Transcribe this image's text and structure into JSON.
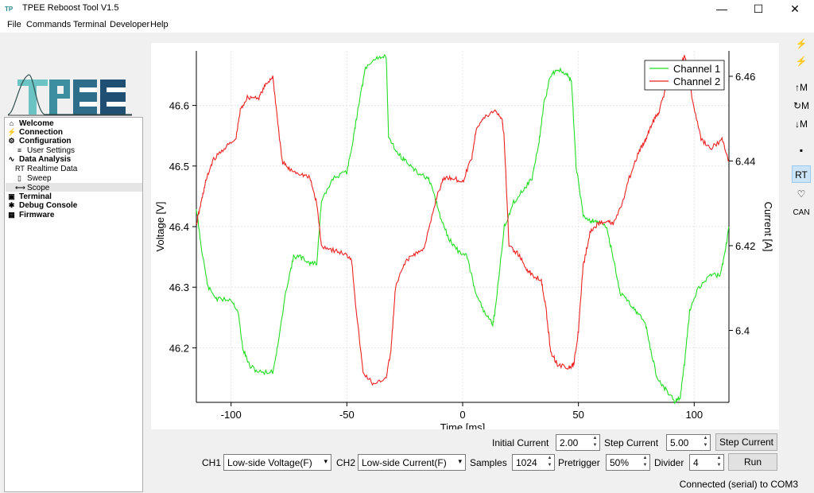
{
  "window": {
    "title": "TPEE Reboost Tool V1.5",
    "minimize_glyph": "—",
    "maximize_glyph": "☐",
    "close_glyph": "✕"
  },
  "menu": [
    "File",
    "Commands",
    "Terminal",
    "Developer",
    "Help"
  ],
  "logo": {
    "text": "TPEE"
  },
  "tree": [
    {
      "label": "Welcome",
      "icon": "home-icon",
      "glyph": "⌂",
      "bold": true,
      "indent": 0
    },
    {
      "label": "Connection",
      "icon": "plug-icon",
      "glyph": "⚡",
      "bold": true,
      "indent": 0
    },
    {
      "label": "Configuration",
      "icon": "gear-icon",
      "glyph": "⚙",
      "bold": true,
      "indent": 0
    },
    {
      "label": "User Settings",
      "icon": "sliders-icon",
      "glyph": "≡",
      "bold": false,
      "indent": 1
    },
    {
      "label": "Data Analysis",
      "icon": "chart-icon",
      "glyph": "∿",
      "bold": true,
      "indent": 0
    },
    {
      "label": "Realtime Data",
      "icon": "realtime-icon",
      "glyph": "RT",
      "bold": false,
      "indent": 1
    },
    {
      "label": "Sweep",
      "icon": "document-icon",
      "glyph": "▯",
      "bold": false,
      "indent": 1
    },
    {
      "label": "Scope",
      "icon": "scope-icon",
      "glyph": "⟷",
      "bold": false,
      "indent": 1
    },
    {
      "label": "Terminal",
      "icon": "terminal-icon",
      "glyph": "▣",
      "bold": true,
      "indent": 0
    },
    {
      "label": "Debug Console",
      "icon": "bug-icon",
      "glyph": "✱",
      "bold": true,
      "indent": 0
    },
    {
      "label": "Firmware",
      "icon": "chip-icon",
      "glyph": "▦",
      "bold": true,
      "indent": 0
    }
  ],
  "toolbar": [
    {
      "name": "connect-icon",
      "glyph": "⚡"
    },
    {
      "name": "disconnect-icon",
      "glyph": "⚡"
    },
    {
      "name": "upload-memory-icon",
      "glyph": "↑M"
    },
    {
      "name": "reset-memory-icon",
      "glyph": "↻M"
    },
    {
      "name": "download-memory-icon",
      "glyph": "↓M"
    },
    {
      "name": "save-icon",
      "glyph": "▪"
    },
    {
      "name": "realtime-icon",
      "glyph": "RT",
      "active": true
    },
    {
      "name": "heart-icon",
      "glyph": "♡"
    },
    {
      "name": "can-icon",
      "glyph": "CAN"
    }
  ],
  "controls": {
    "initial_current_label": "Initial Current",
    "initial_current_value": "2.00",
    "step_current_label": "Step Current",
    "step_current_value": "5.00",
    "step_current_button": "Step Current",
    "ch1_label": "CH1",
    "ch1_value": "Low-side Voltage(F)",
    "ch2_label": "CH2",
    "ch2_value": "Low-side Current(F)",
    "samples_label": "Samples",
    "samples_value": "1024",
    "pretrigger_label": "Pretrigger",
    "pretrigger_value": "50%",
    "divider_label": "Divider",
    "divider_value": "4",
    "run_button": "Run"
  },
  "status": "Connected (serial) to COM3",
  "chart_data": {
    "type": "line",
    "xlabel": "Time [ms]",
    "ylabel": "Voltage [V]",
    "y2label": "Current [A]",
    "xlim": [
      -115,
      115
    ],
    "ylim": [
      46.11,
      46.69
    ],
    "y2lim": [
      6.383,
      6.466
    ],
    "xticks": [
      -100,
      -50,
      0,
      50,
      100
    ],
    "yticks": [
      46.2,
      46.3,
      46.4,
      46.5,
      46.6
    ],
    "y2ticks": [
      6.4,
      6.42,
      6.44,
      6.46
    ],
    "grid": true,
    "legend": "top-right",
    "colors": {
      "ch1": "#22dd22",
      "ch2": "#ee2222"
    },
    "series": [
      {
        "name": "Channel 1",
        "axis": "left",
        "x": [
          -115,
          -113,
          -110,
          -106,
          -100,
          -97,
          -95,
          -92,
          -88,
          -82,
          -80,
          -76,
          -73,
          -70,
          -66,
          -63,
          -61,
          -56,
          -50,
          -47,
          -45,
          -42,
          -37,
          -33,
          -32,
          -28,
          -25,
          -20,
          -15,
          -12,
          -10,
          -6,
          -2,
          2,
          5,
          9,
          13,
          14,
          18,
          22,
          26,
          30,
          33,
          35,
          38,
          41,
          45,
          47,
          49,
          52,
          55,
          58,
          62,
          65,
          68,
          71,
          75,
          79,
          81,
          84,
          88,
          92,
          94,
          96,
          98,
          102,
          107,
          111,
          113,
          115
        ],
        "values": [
          46.43,
          46.37,
          46.3,
          46.28,
          46.28,
          46.26,
          46.2,
          46.17,
          46.16,
          46.16,
          46.2,
          46.3,
          46.35,
          46.35,
          46.34,
          46.34,
          46.44,
          46.48,
          46.49,
          46.55,
          46.6,
          46.66,
          46.68,
          46.68,
          46.55,
          46.52,
          46.51,
          46.49,
          46.48,
          46.45,
          46.42,
          46.38,
          46.36,
          46.35,
          46.3,
          46.26,
          46.24,
          46.26,
          46.4,
          46.44,
          46.46,
          46.48,
          46.54,
          46.6,
          46.65,
          46.66,
          46.65,
          46.64,
          46.5,
          46.42,
          46.41,
          46.41,
          46.4,
          46.35,
          46.29,
          46.28,
          46.26,
          46.24,
          46.2,
          46.15,
          46.13,
          46.11,
          46.12,
          46.18,
          46.26,
          46.3,
          46.32,
          46.32,
          46.35,
          46.4
        ]
      },
      {
        "name": "Channel 2",
        "axis": "right",
        "x": [
          -115,
          -113,
          -111,
          -108,
          -103,
          -98,
          -96,
          -93,
          -88,
          -85,
          -82,
          -80,
          -78,
          -75,
          -70,
          -66,
          -63,
          -61,
          -56,
          -51,
          -48,
          -46,
          -43,
          -38,
          -33,
          -31,
          -29,
          -25,
          -21,
          -17,
          -14,
          -11,
          -8,
          -4,
          0,
          4,
          6,
          9,
          14,
          17,
          18,
          20,
          24,
          27,
          30,
          34,
          36,
          38,
          41,
          46,
          48,
          50,
          52,
          55,
          58,
          62,
          65,
          69,
          72,
          76,
          79,
          81,
          83,
          85,
          88,
          91,
          93,
          96,
          99,
          103,
          107,
          112,
          115
        ],
        "values": [
          6.425,
          6.43,
          6.435,
          6.44,
          6.443,
          6.445,
          6.452,
          6.455,
          6.455,
          6.458,
          6.46,
          6.45,
          6.44,
          6.438,
          6.437,
          6.436,
          6.43,
          6.42,
          6.419,
          6.418,
          6.417,
          6.405,
          6.39,
          6.387,
          6.389,
          6.395,
          6.41,
          6.416,
          6.418,
          6.419,
          6.425,
          6.432,
          6.436,
          6.436,
          6.435,
          6.441,
          6.448,
          6.45,
          6.452,
          6.45,
          6.445,
          6.42,
          6.418,
          6.415,
          6.413,
          6.412,
          6.405,
          6.395,
          6.392,
          6.391,
          6.392,
          6.4,
          6.415,
          6.423,
          6.425,
          6.426,
          6.425,
          6.43,
          6.436,
          6.442,
          6.445,
          6.448,
          6.45,
          6.452,
          6.458,
          6.459,
          6.462,
          6.465,
          6.455,
          6.445,
          6.443,
          6.445,
          6.44
        ]
      }
    ]
  }
}
